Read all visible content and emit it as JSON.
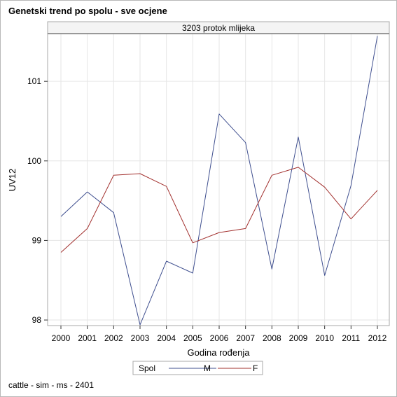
{
  "page": {
    "title": "Genetski trend po spolu - sve ocjene",
    "footnote": "cattle - sim - ms - 2401"
  },
  "chart_data": {
    "type": "line",
    "panel_title": "3203 protok mlijeka",
    "xlabel": "Godina rođenja",
    "ylabel": "UV12",
    "x": [
      2000,
      2001,
      2002,
      2003,
      2004,
      2005,
      2006,
      2007,
      2008,
      2009,
      2010,
      2011,
      2012
    ],
    "x_tick_labels": [
      "2000",
      "2001",
      "2002",
      "2003",
      "2004",
      "2005",
      "2006",
      "2007",
      "2008",
      "2009",
      "2010",
      "2011",
      "2012"
    ],
    "y_ticks": [
      98,
      99,
      100,
      101
    ],
    "y_tick_labels": [
      "98",
      "99",
      "100",
      "101"
    ],
    "ylim": [
      97.93,
      101.6
    ],
    "grid": true,
    "legend": {
      "title": "Spol",
      "placement": "bottom-center"
    },
    "series": [
      {
        "name": "M",
        "color": "#3f4f8f",
        "values": [
          99.3,
          99.61,
          99.35,
          97.94,
          98.74,
          98.59,
          100.59,
          100.23,
          98.64,
          100.3,
          98.56,
          99.69,
          101.57
        ]
      },
      {
        "name": "F",
        "color": "#a2302e",
        "values": [
          98.85,
          99.15,
          99.82,
          99.84,
          99.68,
          98.97,
          99.1,
          99.15,
          99.82,
          99.92,
          99.67,
          99.27,
          99.63
        ]
      }
    ]
  }
}
